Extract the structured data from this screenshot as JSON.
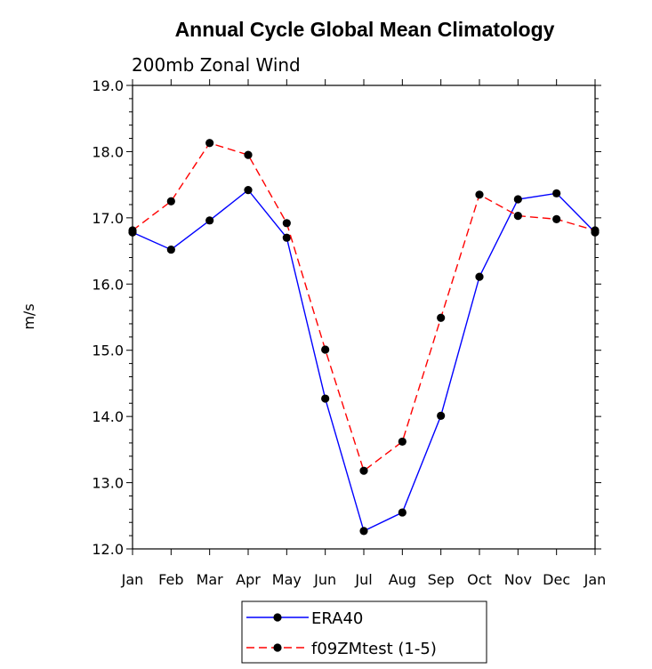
{
  "chart_data": {
    "type": "line",
    "title": "Annual Cycle Global Mean Climatology",
    "subtitle": "200mb Zonal Wind",
    "xlabel": "",
    "ylabel": "m/s",
    "ylim": [
      12.0,
      19.0
    ],
    "yticks": [
      "12.0",
      "13.0",
      "14.0",
      "15.0",
      "16.0",
      "17.0",
      "18.0",
      "19.0"
    ],
    "categories": [
      "Jan",
      "Feb",
      "Mar",
      "Apr",
      "May",
      "Jun",
      "Jul",
      "Aug",
      "Sep",
      "Oct",
      "Nov",
      "Dec",
      "Jan"
    ],
    "series": [
      {
        "name": "ERA40",
        "color": "#0000ff",
        "dash": "solid",
        "values": [
          16.78,
          16.52,
          16.96,
          17.42,
          16.7,
          14.27,
          12.27,
          12.55,
          14.01,
          16.11,
          17.28,
          17.37,
          16.78
        ]
      },
      {
        "name": "f09ZMtest (1-5)",
        "color": "#ff0000",
        "dash": "dashed",
        "values": [
          16.81,
          17.25,
          18.13,
          17.95,
          16.92,
          15.01,
          13.18,
          13.62,
          15.49,
          17.35,
          17.03,
          16.98,
          16.81
        ]
      }
    ],
    "legend_position": "bottom-center",
    "grid": false
  }
}
